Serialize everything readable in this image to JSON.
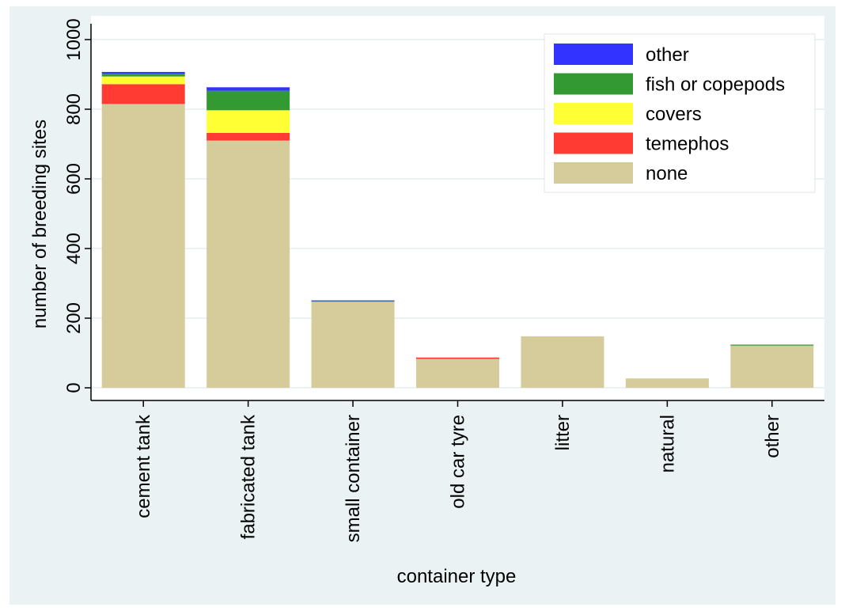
{
  "chart_data": {
    "type": "bar",
    "stacked": true,
    "xlabel": "container type",
    "ylabel": "number of breeding sites",
    "ylim": [
      0,
      1000
    ],
    "yticks": [
      0,
      200,
      400,
      600,
      800,
      1000
    ],
    "grid": true,
    "legend_position": "top-right",
    "categories": [
      "cement tank",
      "fabricated tank",
      "small container",
      "old car tyre",
      "litter",
      "natural",
      "other"
    ],
    "series": [
      {
        "name": "none",
        "color": "#d6cb9b",
        "values": [
          815,
          710,
          248,
          83,
          148,
          27,
          121
        ]
      },
      {
        "name": "temephos",
        "color": "#ff3b33",
        "values": [
          57,
          22,
          0,
          4,
          0,
          0,
          0
        ]
      },
      {
        "name": "covers",
        "color": "#ffff33",
        "values": [
          22,
          65,
          0,
          0,
          0,
          0,
          0
        ]
      },
      {
        "name": "fish or copepods",
        "color": "#339933",
        "values": [
          8,
          56,
          1,
          0,
          0,
          0,
          3
        ]
      },
      {
        "name": "other",
        "color": "#3333ff",
        "values": [
          5,
          10,
          2,
          0,
          0,
          0,
          0
        ]
      }
    ],
    "legend_order": [
      "other",
      "fish or copepods",
      "covers",
      "temephos",
      "none"
    ]
  },
  "colors": {
    "background": "#eaf2f3",
    "plot_background": "#ffffff",
    "grid": "#eaf2f3",
    "axis": "#000000"
  }
}
